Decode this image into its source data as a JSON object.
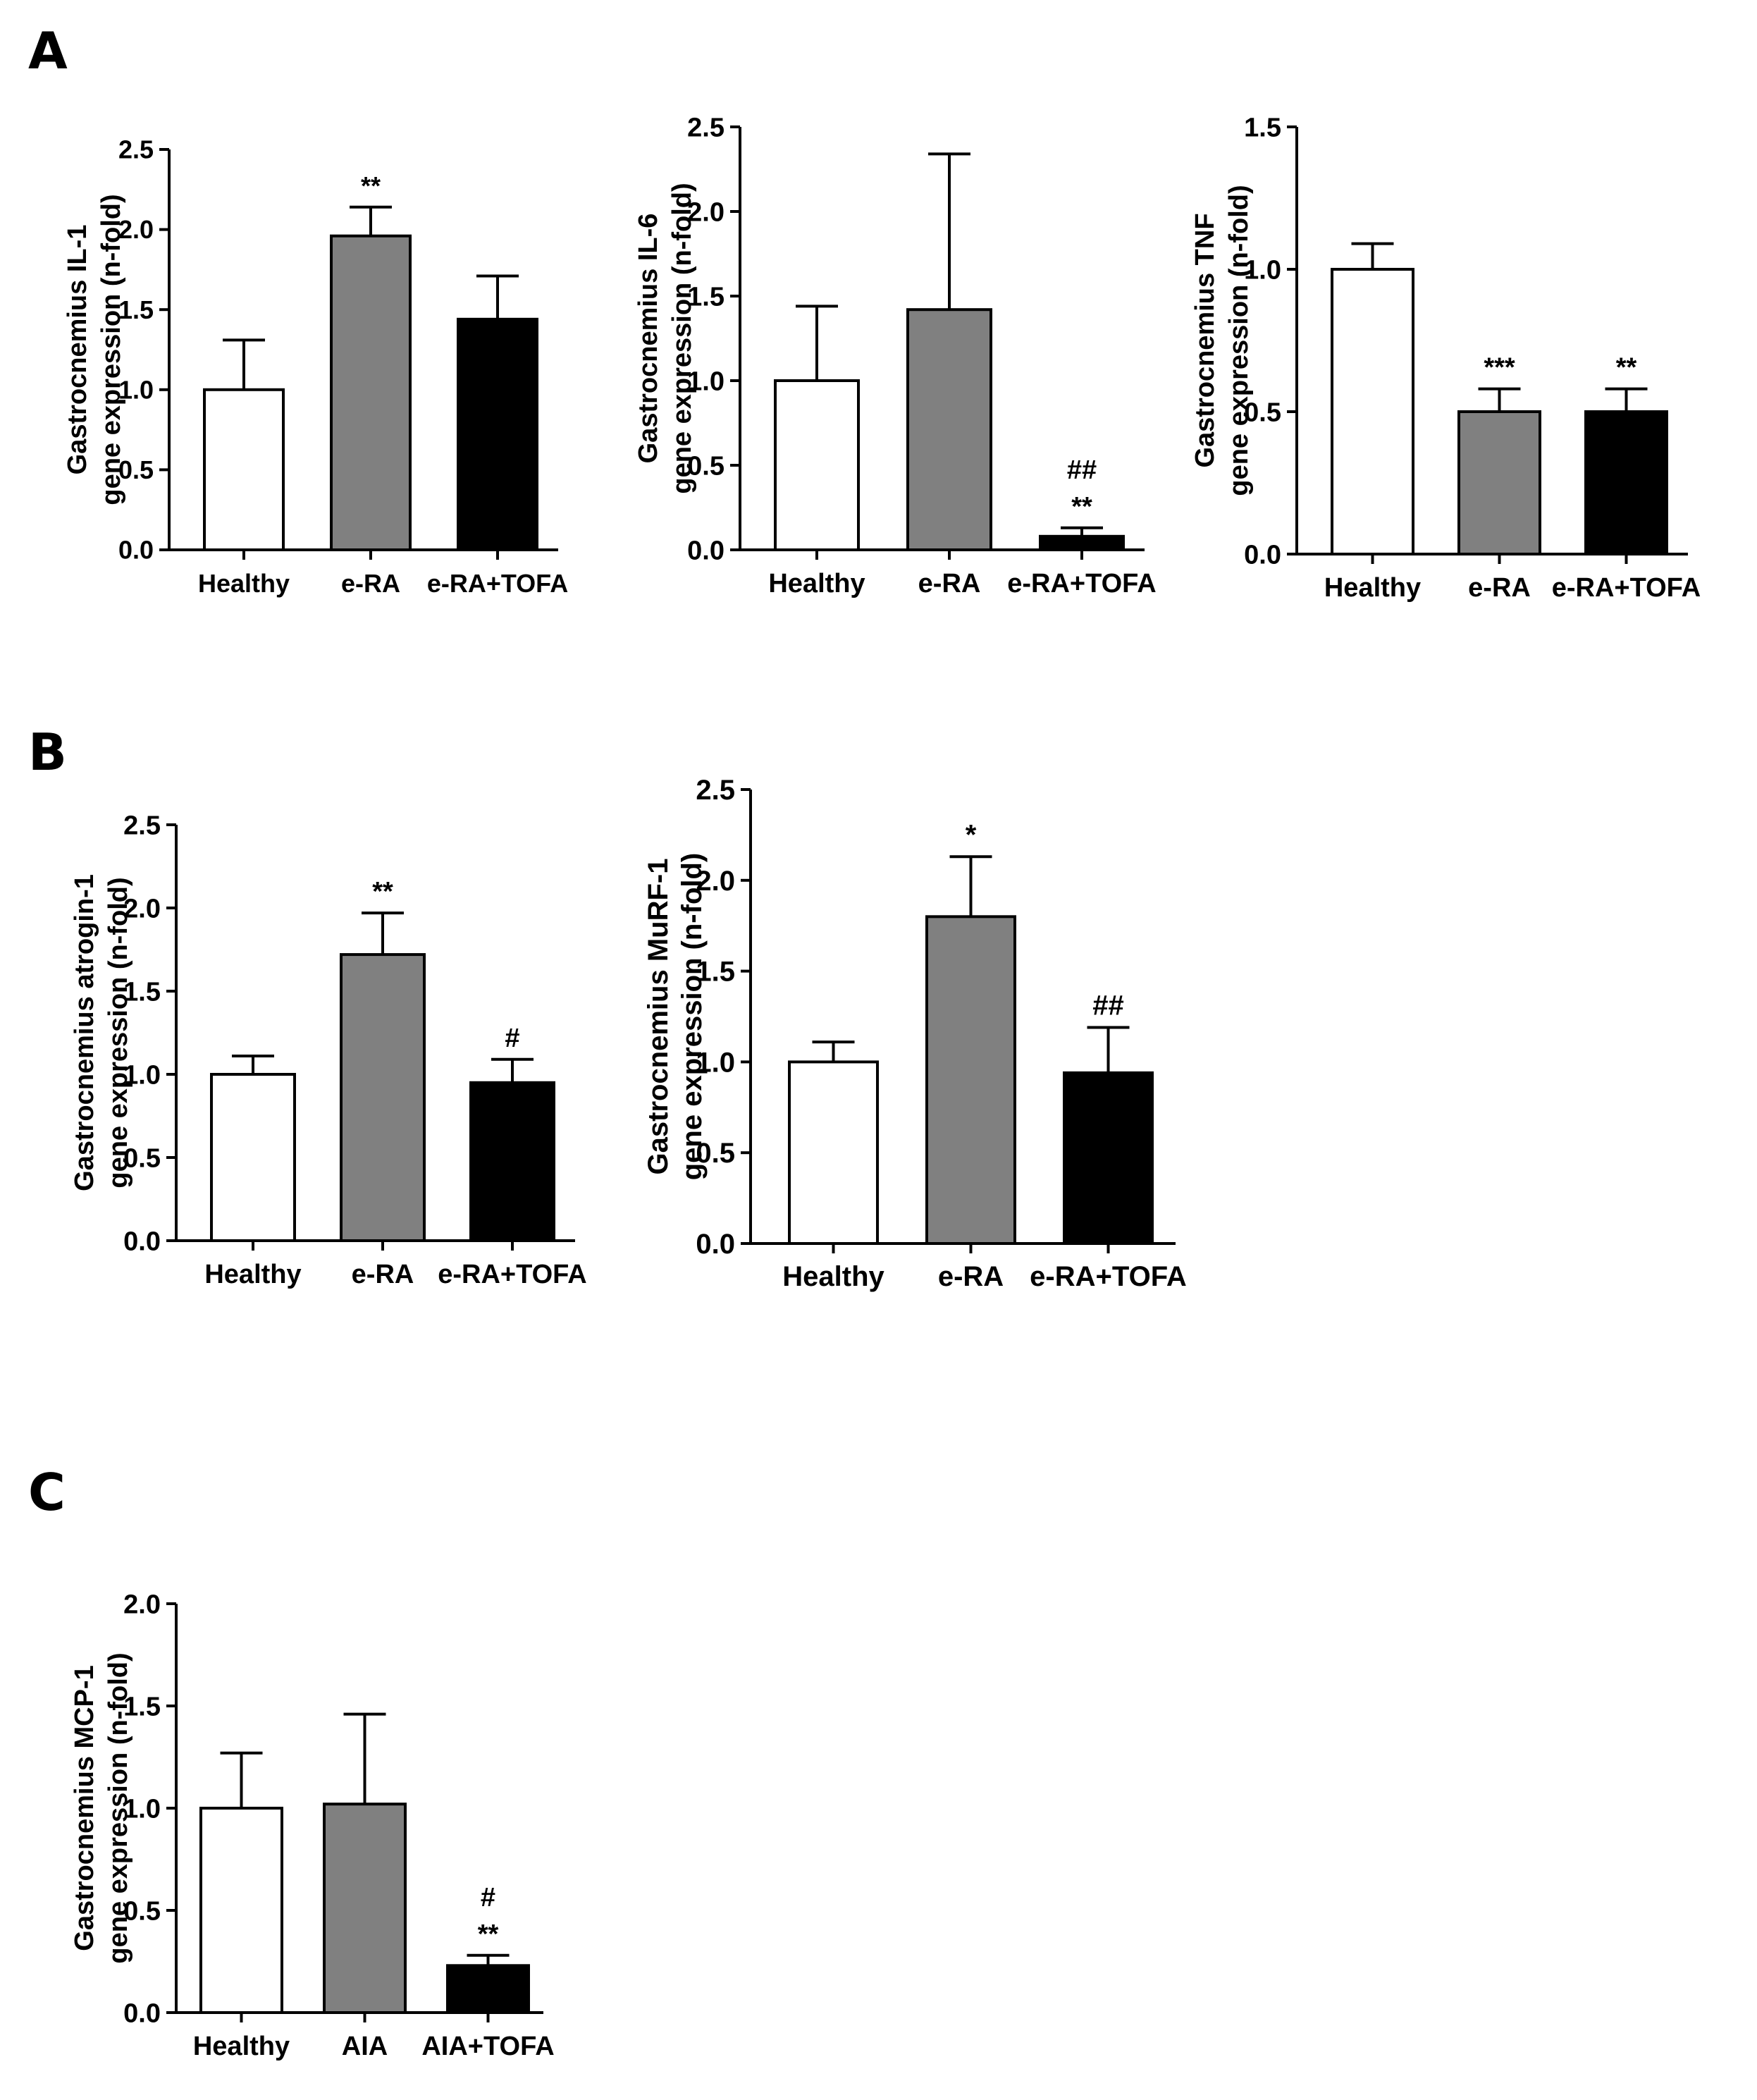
{
  "panels": {
    "A": "A",
    "B": "B",
    "C": "C"
  },
  "chart_data": [
    {
      "type": "bar",
      "ylabel_line1": "Gastrocnemius IL-1",
      "ylabel_line2": "gene expression (n-fold)",
      "ylim": [
        0,
        2.5
      ],
      "yticks": [
        "0.0",
        "0.5",
        "1.0",
        "1.5",
        "2.0",
        "2.5"
      ],
      "categories": [
        "Healthy",
        "e-RA",
        "e-RA+TOFA"
      ],
      "values": [
        1.0,
        1.96,
        1.44
      ],
      "errors": [
        0.31,
        0.18,
        0.27
      ],
      "fills": [
        "#ffffff",
        "#808080",
        "#000000"
      ],
      "annotations": [
        [],
        [
          "**"
        ],
        []
      ]
    },
    {
      "type": "bar",
      "ylabel_line1": "Gastrocnemius IL-6",
      "ylabel_line2": "gene expression (n-fold)",
      "ylim": [
        0,
        2.5
      ],
      "yticks": [
        "0.0",
        "0.5",
        "1.0",
        "1.5",
        "2.0",
        "2.5"
      ],
      "categories": [
        "Healthy",
        "e-RA",
        "e-RA+TOFA"
      ],
      "values": [
        1.0,
        1.42,
        0.08
      ],
      "errors": [
        0.44,
        0.92,
        0.05
      ],
      "fills": [
        "#ffffff",
        "#808080",
        "#000000"
      ],
      "annotations": [
        [],
        [],
        [
          "**",
          "##"
        ]
      ]
    },
    {
      "type": "bar",
      "ylabel_line1": "Gastrocnemius TNF",
      "ylabel_line2": "gene expression (n-fold)",
      "ylim": [
        0,
        1.5
      ],
      "yticks": [
        "0.0",
        "0.5",
        "1.0",
        "1.5"
      ],
      "categories": [
        "Healthy",
        "e-RA",
        "e-RA+TOFA"
      ],
      "values": [
        1.0,
        0.5,
        0.5
      ],
      "errors": [
        0.09,
        0.08,
        0.08
      ],
      "fills": [
        "#ffffff",
        "#808080",
        "#000000"
      ],
      "annotations": [
        [],
        [
          "***"
        ],
        [
          "**"
        ]
      ]
    },
    {
      "type": "bar",
      "ylabel_line1": "Gastrocnemius atrogin-1",
      "ylabel_line2": "gene expression (n-fold)",
      "ylim": [
        0,
        2.5
      ],
      "yticks": [
        "0.0",
        "0.5",
        "1.0",
        "1.5",
        "2.0",
        "2.5"
      ],
      "categories": [
        "Healthy",
        "e-RA",
        "e-RA+TOFA"
      ],
      "values": [
        1.0,
        1.72,
        0.95
      ],
      "errors": [
        0.11,
        0.25,
        0.14
      ],
      "fills": [
        "#ffffff",
        "#808080",
        "#000000"
      ],
      "annotations": [
        [],
        [
          "**"
        ],
        [
          "#"
        ]
      ]
    },
    {
      "type": "bar",
      "ylabel_line1": "Gastrocnemius MuRF-1",
      "ylabel_line2": "gene expression (n-fold)",
      "ylim": [
        0,
        2.5
      ],
      "yticks": [
        "0.0",
        "0.5",
        "1.0",
        "1.5",
        "2.0",
        "2.5"
      ],
      "categories": [
        "Healthy",
        "e-RA",
        "e-RA+TOFA"
      ],
      "values": [
        1.0,
        1.8,
        0.94
      ],
      "errors": [
        0.11,
        0.33,
        0.25
      ],
      "fills": [
        "#ffffff",
        "#808080",
        "#000000"
      ],
      "annotations": [
        [],
        [
          "*"
        ],
        [
          "##"
        ]
      ]
    },
    {
      "type": "bar",
      "ylabel_line1": "Gastrocnemius MCP-1",
      "ylabel_line2": "gene expression (n-fold)",
      "ylim": [
        0,
        2.0
      ],
      "yticks": [
        "0.0",
        "0.5",
        "1.0",
        "1.5",
        "2.0"
      ],
      "categories": [
        "Healthy",
        "AIA",
        "AIA+TOFA"
      ],
      "values": [
        1.0,
        1.02,
        0.23
      ],
      "errors": [
        0.27,
        0.44,
        0.05
      ],
      "fills": [
        "#ffffff",
        "#808080",
        "#000000"
      ],
      "annotations": [
        [],
        [],
        [
          "**",
          "#"
        ]
      ]
    }
  ]
}
